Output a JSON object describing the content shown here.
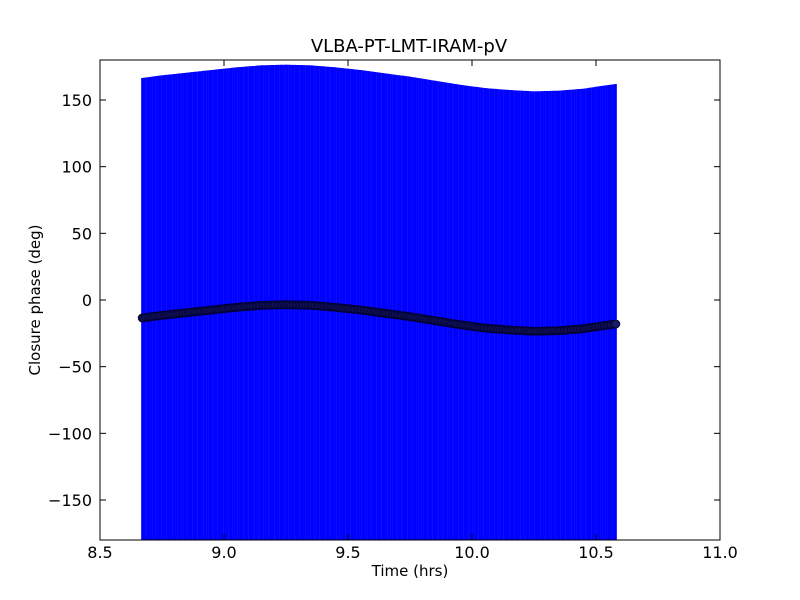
{
  "chart_data": {
    "type": "scatter",
    "title": "VLBA-PT-LMT-IRAM-pV",
    "xlabel": "Time (hrs)",
    "ylabel": "Closure phase (deg)",
    "xlim": [
      8.5,
      11.0
    ],
    "ylim": [
      -180,
      180
    ],
    "x_ticks": [
      8.5,
      9.0,
      9.5,
      10.0,
      10.5,
      11.0
    ],
    "x_tick_labels": [
      "8.5",
      "9.0",
      "9.5",
      "10.0",
      "10.5",
      "11.0"
    ],
    "y_ticks": [
      150,
      100,
      50,
      0,
      -50,
      -100,
      -150
    ],
    "y_tick_labels": [
      "150",
      "100",
      "50",
      "0",
      "−50",
      "−100",
      "−150"
    ],
    "grid": false,
    "colors": {
      "error_band": "#0000ff",
      "points": "#1a1a66",
      "point_edge": "#000033"
    },
    "series": [
      {
        "x": [
          8.67,
          8.75,
          8.85,
          8.95,
          9.05,
          9.15,
          9.25,
          9.35,
          9.45,
          9.55,
          9.65,
          9.75,
          9.85,
          9.95,
          10.05,
          10.15,
          10.25,
          10.35,
          10.45,
          10.52,
          10.58
        ],
        "y": [
          -13.5,
          -11.5,
          -9.5,
          -7.5,
          -5.5,
          -4.0,
          -3.5,
          -4.0,
          -5.5,
          -7.5,
          -10.0,
          -12.5,
          -15.5,
          -18.5,
          -21.0,
          -22.5,
          -23.5,
          -23.0,
          -21.5,
          -19.5,
          -18.0
        ],
        "y_error": 180
      }
    ]
  }
}
